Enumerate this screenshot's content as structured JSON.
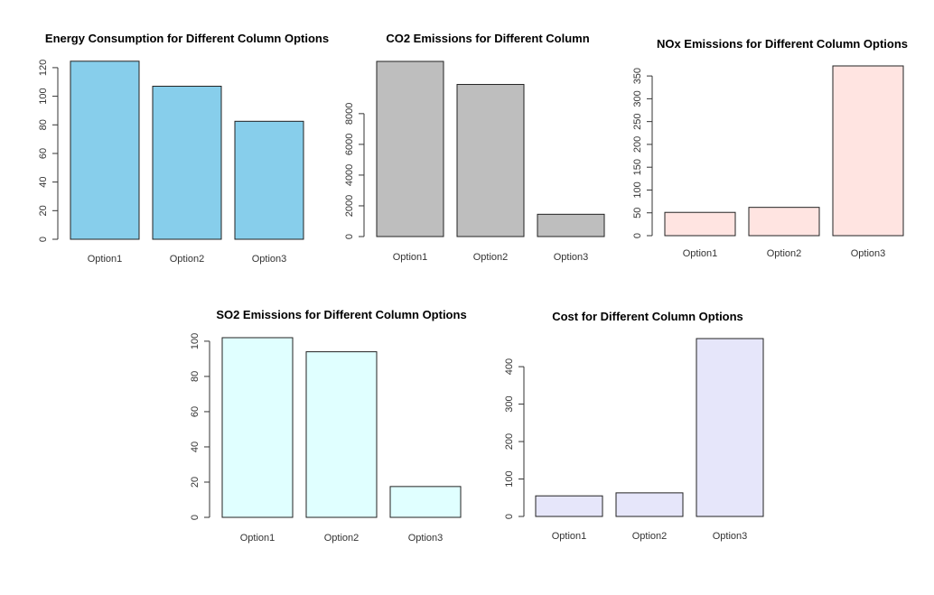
{
  "chart_data": [
    {
      "type": "bar",
      "title": "Energy Consumption for Different Column Options",
      "categories": [
        "Option1",
        "Option2",
        "Option3"
      ],
      "values": [
        124.5,
        107,
        82.5
      ],
      "yticks": [
        0,
        20,
        40,
        60,
        80,
        100,
        120
      ],
      "ylim": [
        0,
        125
      ],
      "color": "#87CEEB",
      "xlabel": "",
      "ylabel": ""
    },
    {
      "type": "bar",
      "title": "CO2 Emissions for Different Column",
      "categories": [
        "Option1",
        "Option2",
        "Option3"
      ],
      "values": [
        11400,
        9900,
        1450
      ],
      "yticks": [
        0,
        2000,
        4000,
        6000,
        8000
      ],
      "ylim": [
        0,
        11400
      ],
      "color": "#BEBEBE",
      "xlabel": "",
      "ylabel": ""
    },
    {
      "type": "bar",
      "title": "NOx Emissions for Different Column Options",
      "categories": [
        "Option1",
        "Option2",
        "Option3"
      ],
      "values": [
        51,
        62,
        372
      ],
      "yticks": [
        0,
        50,
        100,
        150,
        200,
        250,
        300,
        350
      ],
      "ylim": [
        0,
        372
      ],
      "color": "#FFE4E1",
      "xlabel": "",
      "ylabel": ""
    },
    {
      "type": "bar",
      "title": "SO2 Emissions for Different Column Options",
      "categories": [
        "Option1",
        "Option2",
        "Option3"
      ],
      "values": [
        102,
        94,
        17.5
      ],
      "yticks": [
        0,
        20,
        40,
        60,
        80,
        100
      ],
      "ylim": [
        0,
        102
      ],
      "color": "#E0FFFF",
      "xlabel": "",
      "ylabel": ""
    },
    {
      "type": "bar",
      "title": "Cost for Different Column Options",
      "categories": [
        "Option1",
        "Option2",
        "Option3"
      ],
      "values": [
        55,
        63,
        475
      ],
      "yticks": [
        0,
        100,
        200,
        300,
        400
      ],
      "ylim": [
        0,
        475
      ],
      "color": "#E6E6FA",
      "xlabel": "",
      "ylabel": ""
    }
  ]
}
